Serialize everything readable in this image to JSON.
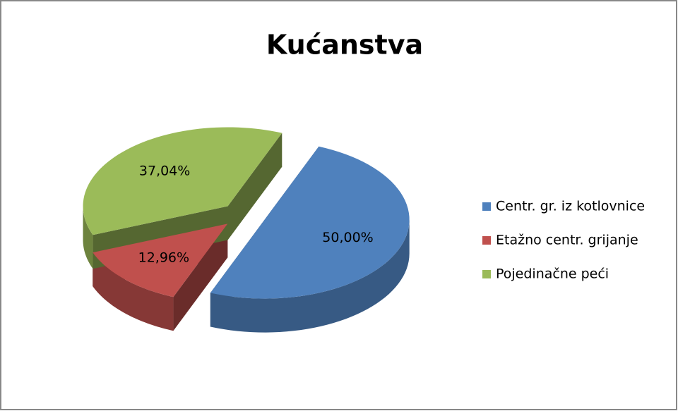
{
  "chart_data": {
    "type": "pie",
    "title": "Kućanstva",
    "categories": [
      "Centr. gr. iz kotlovnice",
      "Etažno centr. grijanje",
      "Pojedinačne peći"
    ],
    "values": [
      50.0,
      12.96,
      37.04
    ],
    "value_labels": [
      "50,00%",
      "12,96%",
      "37,04%"
    ],
    "colors": [
      "#4f81bd",
      "#c0504d",
      "#9bbb59"
    ],
    "legend": "right"
  }
}
